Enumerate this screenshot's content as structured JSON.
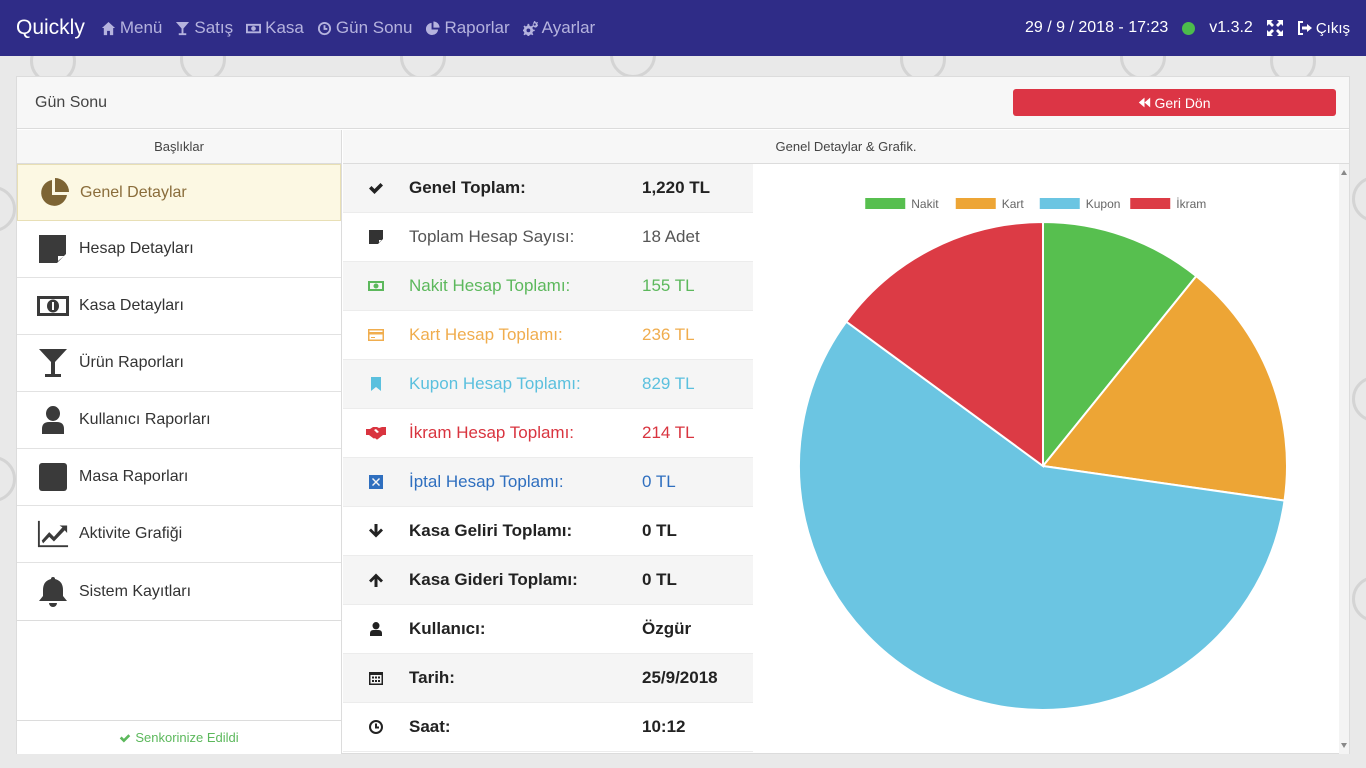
{
  "navbar": {
    "brand": "Quickly",
    "items": [
      {
        "label": "Menü",
        "icon": "home-icon"
      },
      {
        "label": "Satış",
        "icon": "cocktail-icon"
      },
      {
        "label": "Kasa",
        "icon": "money-icon"
      },
      {
        "label": "Gün Sonu",
        "icon": "clock-icon"
      },
      {
        "label": "Raporlar",
        "icon": "pie-chart-icon"
      },
      {
        "label": "Ayarlar",
        "icon": "cogs-icon"
      }
    ],
    "datetime": "29 / 9 / 2018 - 17:23",
    "status_color": "#4cbc4c",
    "version": "v1.3.2",
    "exit_label": "Çıkış"
  },
  "page": {
    "title": "Gün Sonu",
    "back_button": "Geri Dön"
  },
  "sidebar": {
    "header": "Başlıklar",
    "items": [
      {
        "label": "Genel Detaylar",
        "icon": "pie-chart-icon",
        "active": true
      },
      {
        "label": "Hesap Detayları",
        "icon": "sticky-note-icon"
      },
      {
        "label": "Kasa Detayları",
        "icon": "money-icon"
      },
      {
        "label": "Ürün Raporları",
        "icon": "cocktail-icon"
      },
      {
        "label": "Kullanıcı Raporları",
        "icon": "user-icon"
      },
      {
        "label": "Masa Raporları",
        "icon": "table-square-icon"
      },
      {
        "label": "Aktivite Grafiği",
        "icon": "line-chart-icon"
      },
      {
        "label": "Sistem Kayıtları",
        "icon": "bell-icon"
      }
    ],
    "sync_label": "Senkorinize Edildi"
  },
  "details": {
    "header": "Genel Detaylar & Grafik.",
    "rows": [
      {
        "icon": "check-icon",
        "label": "Genel Toplam:",
        "value": "1,220 TL",
        "color": "#222222"
      },
      {
        "icon": "sticky-note-icon",
        "label": "Toplam Hesap Sayısı:",
        "value": "18 Adet",
        "color": "#555555"
      },
      {
        "icon": "money-icon",
        "label": "Nakit Hesap Toplamı:",
        "value": "155 TL",
        "color": "#5cb85c"
      },
      {
        "icon": "credit-card-icon",
        "label": "Kart Hesap Toplamı:",
        "value": "236 TL",
        "color": "#f0ad4e"
      },
      {
        "icon": "bookmark-icon",
        "label": "Kupon Hesap Toplamı:",
        "value": "829 TL",
        "color": "#5bc0de"
      },
      {
        "icon": "handshake-icon",
        "label": "İkram Hesap Toplamı:",
        "value": "214 TL",
        "color": "#d9343f"
      },
      {
        "icon": "cancel-square-icon",
        "label": "İptal Hesap Toplamı:",
        "value": "0 TL",
        "color": "#2f6fbf"
      },
      {
        "icon": "arrow-down-icon",
        "label": "Kasa Geliri Toplamı:",
        "value": "0 TL",
        "color": "#222222"
      },
      {
        "icon": "arrow-up-icon",
        "label": "Kasa Gideri Toplamı:",
        "value": "0 TL",
        "color": "#222222"
      },
      {
        "icon": "user-icon",
        "label": "Kullanıcı:",
        "value": "Özgür",
        "color": "#222222"
      },
      {
        "icon": "calendar-icon",
        "label": "Tarih:",
        "value": "25/9/2018",
        "color": "#222222"
      },
      {
        "icon": "clock-icon",
        "label": "Saat:",
        "value": "10:12",
        "color": "#222222"
      }
    ]
  },
  "chart_data": {
    "type": "pie",
    "title": "",
    "legend_position": "top",
    "categories": [
      "Nakit",
      "Kart",
      "Kupon",
      "İkram"
    ],
    "values": [
      155,
      236,
      829,
      214
    ],
    "colors": [
      "#57bf4f",
      "#eda535",
      "#6bc5e2",
      "#dc3b45"
    ]
  }
}
